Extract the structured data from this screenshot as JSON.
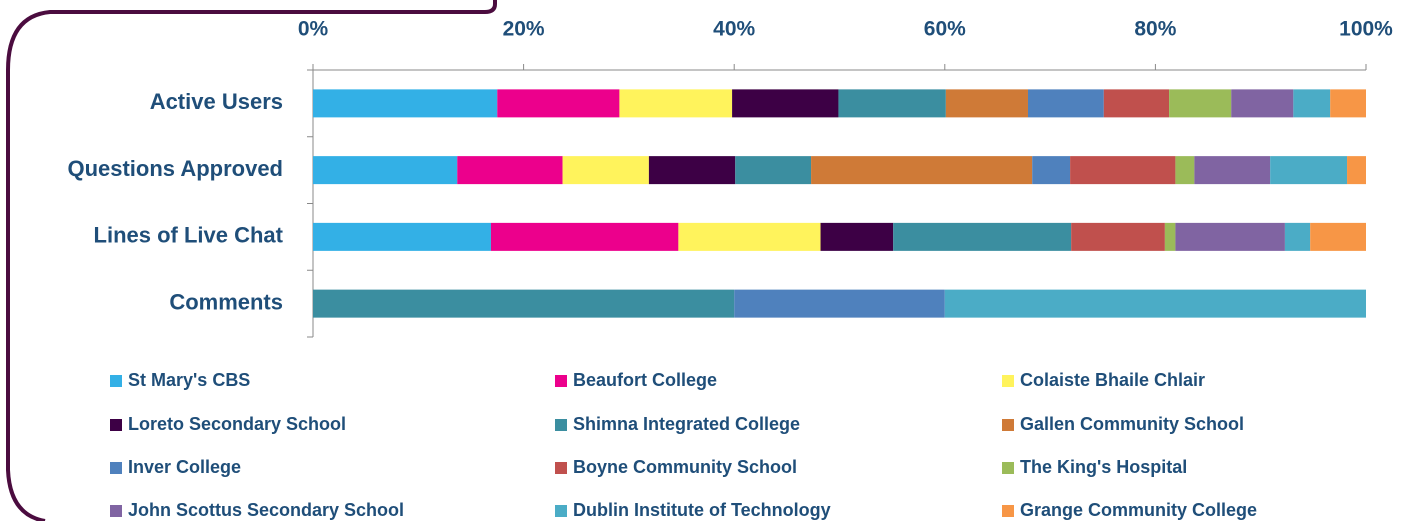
{
  "chart_data": {
    "type": "stacked-bar-horizontal",
    "categories": [
      "Active Users",
      "Questions Approved",
      "Lines of Live Chat",
      "Comments"
    ],
    "xlim": [
      0,
      100
    ],
    "xticks": [
      {
        "value": 0,
        "label": "0%"
      },
      {
        "value": 20,
        "label": "20%"
      },
      {
        "value": 40,
        "label": "40%"
      },
      {
        "value": 60,
        "label": "60%"
      },
      {
        "value": 80,
        "label": "80%"
      },
      {
        "value": 100,
        "label": "100%"
      }
    ],
    "series": [
      {
        "name": "St Mary's CBS",
        "color": "#33b0e6",
        "values": [
          17.5,
          13.7,
          16.9,
          0
        ]
      },
      {
        "name": "Beaufort College",
        "color": "#ec008c",
        "values": [
          11.6,
          10.0,
          17.8,
          0
        ]
      },
      {
        "name": "Colaiste Bhaile Chlair",
        "color": "#fff35c",
        "values": [
          10.7,
          8.2,
          13.5,
          0
        ]
      },
      {
        "name": "Loreto Secondary School",
        "color": "#3d0045",
        "values": [
          10.1,
          8.2,
          6.9,
          0
        ]
      },
      {
        "name": "Shimna Integrated College",
        "color": "#3b8ea0",
        "values": [
          10.2,
          7.2,
          16.9,
          40
        ]
      },
      {
        "name": "Gallen Community School",
        "color": "#cf7a37",
        "values": [
          7.8,
          21.0,
          0,
          0
        ]
      },
      {
        "name": "Inver College",
        "color": "#4f81bd",
        "values": [
          7.2,
          3.6,
          0,
          20
        ]
      },
      {
        "name": "Boyne Community School",
        "color": "#c0504d",
        "values": [
          6.2,
          10.0,
          8.9,
          0
        ]
      },
      {
        "name": "The King's Hospital",
        "color": "#9bbb59",
        "values": [
          5.9,
          1.8,
          1.0,
          0
        ]
      },
      {
        "name": "John Scottus Secondary School",
        "color": "#8064a2",
        "values": [
          5.9,
          7.2,
          10.4,
          0
        ]
      },
      {
        "name": "Dublin Institute of Technology",
        "color": "#4bacc6",
        "values": [
          3.5,
          7.3,
          2.4,
          40
        ]
      },
      {
        "name": "Grange Community College",
        "color": "#f79646",
        "values": [
          3.4,
          1.8,
          5.3,
          0
        ]
      }
    ]
  }
}
